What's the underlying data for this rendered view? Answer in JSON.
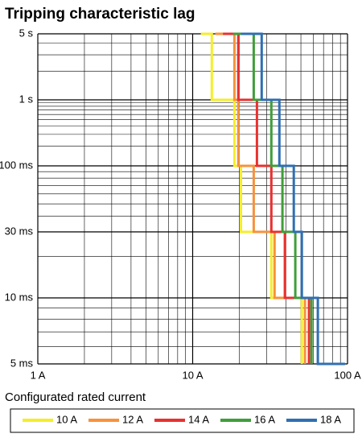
{
  "chart_data": {
    "type": "line",
    "title": "Tripping characteristic lag",
    "legend_title": "Configurated rated current",
    "legend": "bottom",
    "log_x": true,
    "xlim": [
      1,
      100
    ],
    "xticks": [
      {
        "value": 1,
        "label": "1 A"
      },
      {
        "value": 10,
        "label": "10 A"
      },
      {
        "value": 100,
        "label": "100 A"
      }
    ],
    "xminorticks": [
      2,
      3,
      4,
      5,
      6,
      7,
      8,
      9,
      20,
      30,
      40,
      50,
      60,
      70,
      80,
      90
    ],
    "ylim": [
      0.005,
      5
    ],
    "yticks": [
      {
        "value": 5,
        "label": "5 s"
      },
      {
        "value": 1,
        "label": "1 s"
      },
      {
        "value": 0.1,
        "label": "100 ms"
      },
      {
        "value": 0.03,
        "label": "30 ms"
      },
      {
        "value": 0.01,
        "label": "10 ms"
      },
      {
        "value": 0.005,
        "label": "5 ms"
      }
    ],
    "yminorticks": [
      4,
      3,
      2,
      0.9,
      0.8,
      0.7,
      0.6,
      0.5,
      0.4,
      0.3,
      0.2,
      0.09,
      0.08,
      0.07,
      0.06,
      0.05,
      0.04,
      0.02,
      0.009,
      0.008,
      0.007,
      0.006
    ],
    "grid": true,
    "series": [
      {
        "name": "10 A",
        "color": "#f5ee2a",
        "x": [
          11.3,
          13.3,
          13.3,
          18.6,
          18.6,
          20.5,
          20.5,
          32.2,
          32.2,
          50.7,
          50.7
        ],
        "y": [
          5,
          5,
          1,
          1,
          0.1,
          0.1,
          0.03,
          0.03,
          0.01,
          0.01,
          0.005
        ]
      },
      {
        "name": "12 A",
        "color": "#f7923a",
        "x": [
          14.0,
          18.6,
          18.6,
          19.7,
          19.7,
          24.8,
          24.8,
          33.8,
          33.8,
          53.1,
          53.1
        ],
        "y": [
          5,
          5,
          1,
          1,
          0.1,
          0.1,
          0.03,
          0.03,
          0.01,
          0.01,
          0.005
        ]
      },
      {
        "name": "14 A",
        "color": "#e8312f",
        "x": [
          15.7,
          19.7,
          19.7,
          26.0,
          26.0,
          32.2,
          32.2,
          39.4,
          39.4,
          56.4,
          56.4
        ],
        "y": [
          5,
          5,
          1,
          1,
          0.1,
          0.1,
          0.03,
          0.03,
          0.01,
          0.01,
          0.005
        ]
      },
      {
        "name": "16 A",
        "color": "#3f9e3a",
        "x": [
          18.2,
          24.8,
          24.8,
          32.2,
          32.2,
          38.0,
          38.0,
          46.0,
          46.0,
          58.5,
          58.5
        ],
        "y": [
          5,
          5,
          1,
          1,
          0.1,
          0.1,
          0.03,
          0.03,
          0.01,
          0.01,
          0.005
        ]
      },
      {
        "name": "18 A",
        "color": "#2f6fb3",
        "x": [
          20.5,
          27.9,
          27.9,
          36.3,
          36.3,
          45.0,
          45.0,
          50.7,
          50.7,
          64.3,
          64.3,
          96.4
        ],
        "y": [
          5,
          5,
          1,
          1,
          0.1,
          0.1,
          0.03,
          0.03,
          0.01,
          0.01,
          0.005,
          0.005
        ]
      }
    ]
  }
}
